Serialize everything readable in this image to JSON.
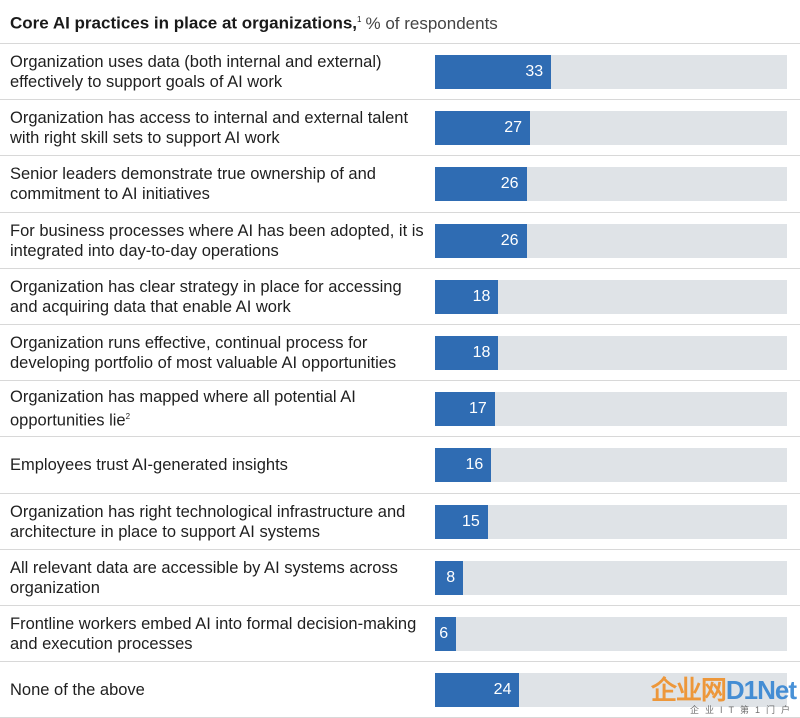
{
  "chart_data": {
    "type": "bar",
    "orientation": "horizontal",
    "title": "Core AI practices in place at organizations,",
    "title_footnote": "1",
    "unit_label": "% of respondents",
    "xlim": [
      0,
      100
    ],
    "categories": [
      "Organization uses data (both internal and external) effectively to support goals of AI work",
      "Organization has access to internal and external talent with right skill sets to support AI work",
      "Senior leaders demonstrate true ownership of and commitment to AI initiatives",
      "For business processes where AI has been adopted, it is integrated into day-to-day operations",
      "Organization has clear strategy in place for accessing and acquiring data that enable AI work",
      "Organization runs effective, continual process for developing portfolio of most valuable AI opportunities",
      "Organization has mapped where all potential AI opportunities lie",
      "Employees trust AI-generated insights",
      "Organization has right technological infrastructure and architecture in place to support AI systems",
      "All relevant data are accessible by AI systems across organization",
      "Frontline workers embed AI into formal decision-making and execution processes",
      "None of the above"
    ],
    "footnotes": [
      "",
      "",
      "",
      "",
      "",
      "",
      "2",
      "",
      "",
      "",
      "",
      ""
    ],
    "values": [
      33,
      27,
      26,
      26,
      18,
      18,
      17,
      16,
      15,
      8,
      6,
      24
    ],
    "bar_color": "#2f6cb3",
    "track_color": "#dfe3e7"
  },
  "watermark": {
    "main_a": "企业网",
    "main_b": "D1Net",
    "sub": "企业IT第1门户"
  }
}
